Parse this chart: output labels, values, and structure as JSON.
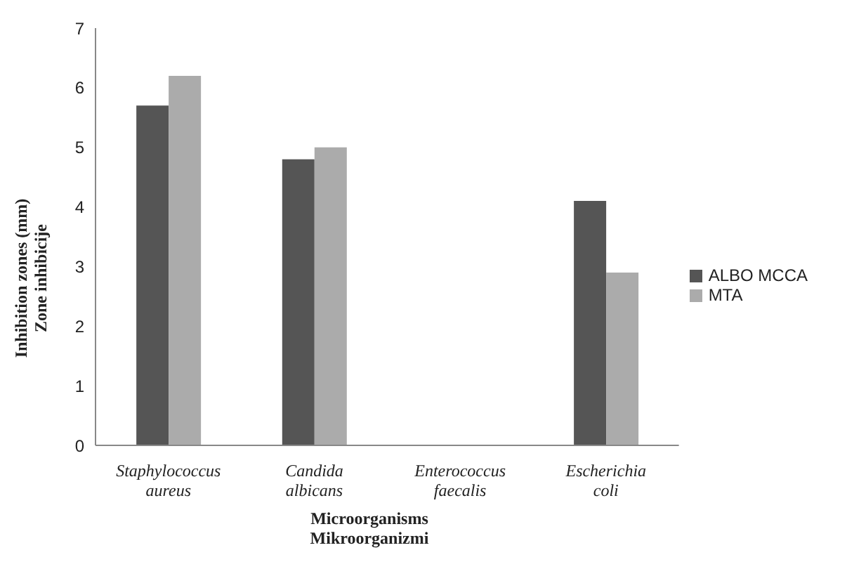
{
  "chart_data": {
    "type": "bar",
    "xlabel": "Microorganisms\nMikroorganizmi",
    "ylabel": "Inhibition zones (mm)\nZone inhibicije",
    "categories": [
      "Staphylococcus\naureus",
      "Candida\nalbicans",
      "Enterococcus\nfaecalis",
      "Escherichia\ncoli"
    ],
    "series": [
      {
        "name": "ALBO MCCA",
        "color": "#555555",
        "values": [
          5.7,
          4.8,
          0,
          4.1
        ]
      },
      {
        "name": "MTA",
        "color": "#ababab",
        "values": [
          6.2,
          5.0,
          0,
          2.9
        ]
      }
    ],
    "ylim": [
      0,
      7
    ],
    "yticks": [
      0,
      1,
      2,
      3,
      4,
      5,
      6,
      7
    ],
    "grid": false,
    "legend": "right"
  }
}
